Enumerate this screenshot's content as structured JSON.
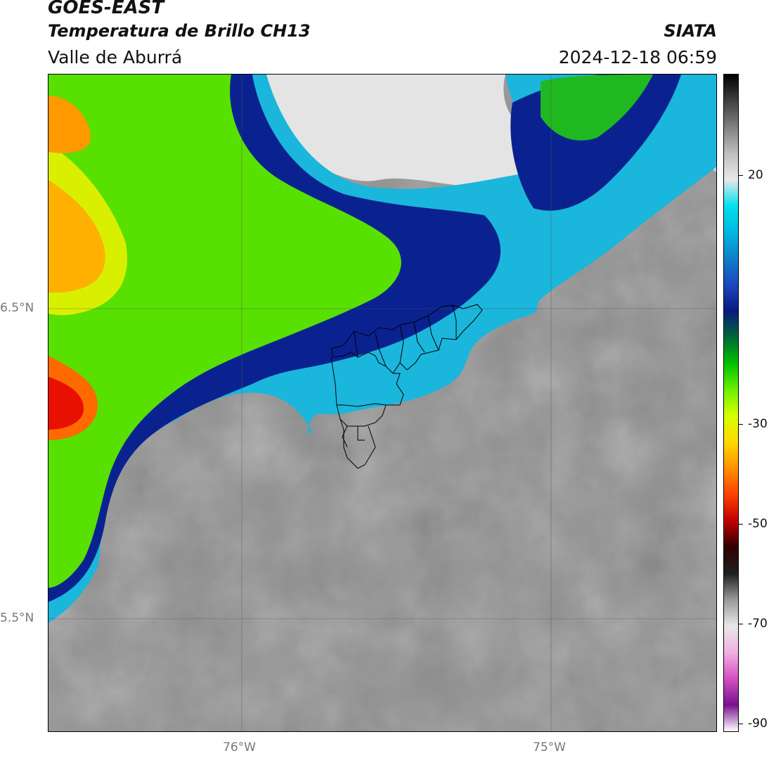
{
  "header": {
    "satellite": "GOES-EAST",
    "product": "Temperatura de Brillo CH13",
    "organization": "SIATA",
    "region": "Valle de Aburrá",
    "timestamp": "2024-12-18 06:59"
  },
  "map": {
    "lat_labels": [
      "6.5°N",
      "5.5°N"
    ],
    "lon_labels": [
      "76°W",
      "75°W"
    ]
  },
  "colorbar": {
    "ticks": [
      "20",
      "-30",
      "-50",
      "-70",
      "-90"
    ],
    "stops": [
      "#ffffff",
      "#7a1290",
      "#d44fc0",
      "#f0b0e0",
      "#e8e8e8",
      "#9a9a9a",
      "#202020",
      "#300000",
      "#c00000",
      "#ff4000",
      "#ff9000",
      "#ffd800",
      "#d8ff00",
      "#6ef000",
      "#00c000",
      "#006838",
      "#0a1a80",
      "#1a48c0",
      "#1080c8",
      "#00b8e0",
      "#00e0f0",
      "#e8e8e8",
      "#bebebe",
      "#808080",
      "#404040",
      "#000000"
    ]
  }
}
